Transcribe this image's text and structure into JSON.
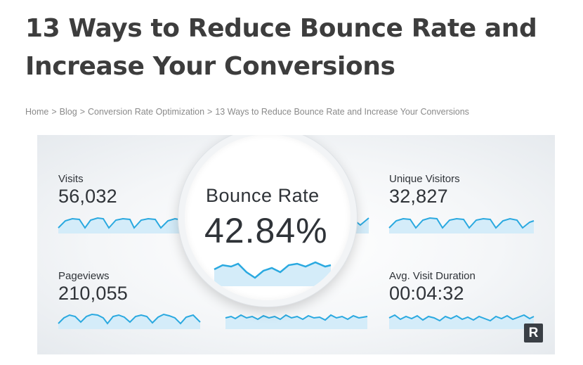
{
  "article": {
    "title": "13 Ways to Reduce Bounce Rate and Increase Your Conversions"
  },
  "breadcrumb": {
    "items": [
      "Home",
      "Blog",
      "Conversion Rate Optimization",
      "13 Ways to Reduce Bounce Rate and Increase Your Conversions"
    ],
    "separator": ">"
  },
  "hero": {
    "metrics": {
      "visits": {
        "label": "Visits",
        "value": "56,032"
      },
      "unique_visitors": {
        "label": "Unique Visitors",
        "value": "32,827"
      },
      "pageviews": {
        "label": "Pageviews",
        "value": "210,055"
      },
      "avg_visit_duration": {
        "label": "Avg. Visit Duration",
        "value": "00:04:32"
      }
    },
    "magnified": {
      "label": "Bounce Rate",
      "value": "42.84%"
    },
    "badge": "R",
    "colors": {
      "sparkline": "#2aa9e0",
      "sparkline_fill": "#d4ecf9",
      "text": "#2f3338"
    }
  }
}
